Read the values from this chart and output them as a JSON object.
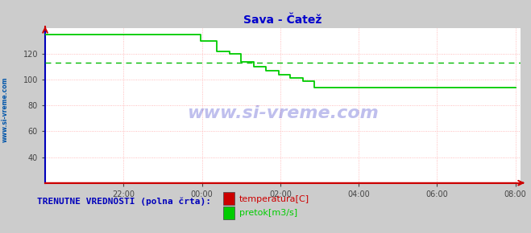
{
  "title": "Sava - Čatež",
  "title_color": "#0000cc",
  "bg_color": "#cccccc",
  "plot_bg_color": "#ffffff",
  "grid_color": "#ffaaaa",
  "ylabel_color": "#0055aa",
  "watermark": "www.si-vreme.com",
  "watermark_color": "#0000bb",
  "left_label": "www.si-vreme.com",
  "ylim": [
    20,
    140
  ],
  "yticks": [
    40,
    60,
    80,
    100,
    120
  ],
  "xtick_positions": [
    48,
    96,
    144,
    192,
    240,
    288
  ],
  "xtick_labels": [
    "22:00",
    "00:00",
    "02:00",
    "04:00",
    "06:00",
    "08:00"
  ],
  "xlim": [
    0,
    291
  ],
  "pretok_color": "#00cc00",
  "temperatura_color": "#cc0000",
  "avg_pretok_color": "#00bb00",
  "avg_pretok_value": 113,
  "pretok_data_x": [
    0,
    95,
    95,
    105,
    105,
    113,
    113,
    120,
    120,
    128,
    128,
    135,
    135,
    143,
    143,
    150,
    150,
    158,
    158,
    165,
    165,
    288
  ],
  "pretok_data_y": [
    135,
    135,
    130,
    130,
    122,
    122,
    120,
    120,
    114,
    114,
    110,
    110,
    107,
    107,
    104,
    104,
    101,
    101,
    99,
    99,
    94,
    94
  ],
  "temperatura_data_x": [
    0,
    288
  ],
  "temperatura_data_y": [
    20.5,
    20.5
  ],
  "legend_temperatura": "temperatura[C]",
  "legend_pretok": "pretok[m3/s]",
  "bottom_label": "TRENUTNE VREDNOSTI (polna črta):",
  "arrow_color": "#cc0000",
  "axis_left_color": "#0000bb",
  "axis_bottom_color": "#cc0000",
  "tick_color": "#444444",
  "font_size_title": 10,
  "font_size_ticks": 7,
  "font_size_legend": 8,
  "font_size_bottom": 8
}
